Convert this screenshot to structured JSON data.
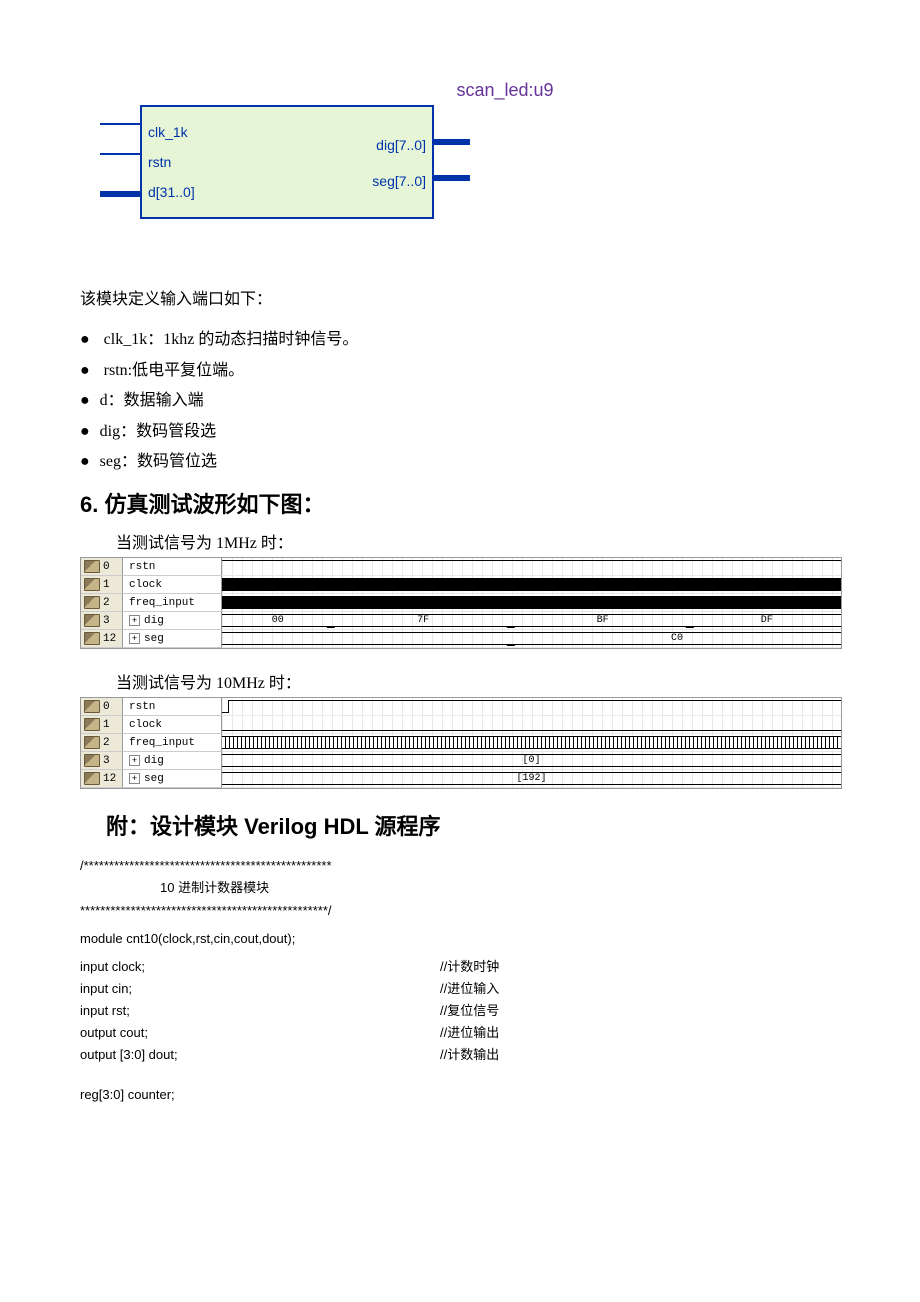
{
  "block": {
    "title": "scan_led:u9",
    "inputs": [
      "clk_1k",
      "rstn",
      "d[31..0]"
    ],
    "outputs": [
      "dig[7..0]",
      "seg[7..0]"
    ]
  },
  "description": {
    "intro": "该模块定义输入端口如下：",
    "bullets": [
      " clk_1k：1khz 的动态扫描时钟信号。",
      " rstn:低电平复位端。",
      "d：数据输入端",
      "dig：数码管段选",
      "seg：数码管位选"
    ]
  },
  "section6": {
    "heading": "6. 仿真测试波形如下图：",
    "sub1": "当测试信号为 1MHz 时：",
    "sub2": "当测试信号为 10MHz 时："
  },
  "waveform1": {
    "rows": [
      {
        "idx": "0",
        "name": "rstn",
        "type": "high"
      },
      {
        "idx": "1",
        "name": "clock",
        "type": "clock_fast"
      },
      {
        "idx": "2",
        "name": "freq_input",
        "type": "clock_fast"
      },
      {
        "idx": "3",
        "name": "dig",
        "type": "bus",
        "expand": true,
        "segments": [
          {
            "start": 0,
            "end": 18,
            "label": "00"
          },
          {
            "start": 18,
            "end": 47,
            "label": "7F"
          },
          {
            "start": 47,
            "end": 76,
            "label": "BF"
          },
          {
            "start": 76,
            "end": 100,
            "label": "DF"
          }
        ]
      },
      {
        "idx": "12",
        "name": "seg",
        "type": "bus",
        "expand": true,
        "segments": [
          {
            "start": 0,
            "end": 47,
            "label": ""
          },
          {
            "start": 47,
            "end": 100,
            "label": "C0"
          }
        ]
      }
    ]
  },
  "waveform2": {
    "rows": [
      {
        "idx": "0",
        "name": "rstn",
        "type": "rstn_pulse"
      },
      {
        "idx": "1",
        "name": "clock",
        "type": "low"
      },
      {
        "idx": "2",
        "name": "freq_input",
        "type": "clock_med"
      },
      {
        "idx": "3",
        "name": "dig",
        "type": "bus",
        "expand": true,
        "segments": [
          {
            "start": 0,
            "end": 100,
            "label": "[0]"
          }
        ]
      },
      {
        "idx": "12",
        "name": "seg",
        "type": "bus",
        "expand": true,
        "segments": [
          {
            "start": 0,
            "end": 100,
            "label": "[192]"
          }
        ]
      }
    ]
  },
  "appendix": {
    "heading": "附：设计模块 Verilog HDL 源程序",
    "sep_top": "/*************************************************",
    "module_title": "10 进制计数器模块",
    "sep_bot": "*************************************************/",
    "module_decl": "module cnt10(clock,rst,cin,cout,dout);",
    "ports": [
      {
        "decl": "input    clock;",
        "comment": "//计数时钟"
      },
      {
        "decl": "input    cin;",
        "comment": "//进位输入"
      },
      {
        "decl": "input    rst;",
        "comment": "//复位信号"
      },
      {
        "decl": "output cout;",
        "comment": "//进位输出"
      },
      {
        "decl": "output [3:0] dout;",
        "comment": "//计数输出"
      }
    ],
    "reg_decl": "reg[3:0] counter;"
  }
}
